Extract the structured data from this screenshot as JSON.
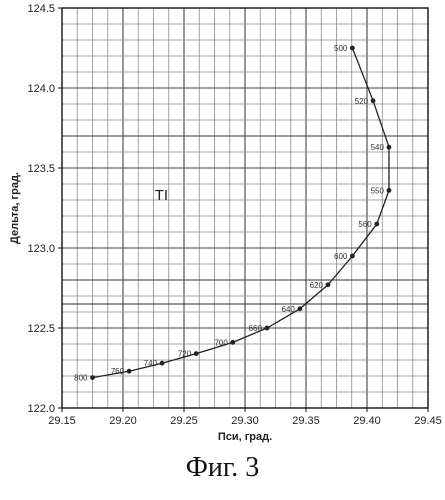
{
  "caption": "Фиг. 3",
  "chart_data": {
    "type": "line",
    "title": "",
    "xlabel": "Пси, град.",
    "ylabel": "Дельта, град.",
    "xlim": [
      29.15,
      29.45
    ],
    "ylim": [
      122.0,
      124.5
    ],
    "x_ticks": [
      "29.15",
      "29.20",
      "29.25",
      "29.30",
      "29.35",
      "29.40",
      "29.45"
    ],
    "y_ticks": [
      "122.0",
      "122.5",
      "123.0",
      "123.5",
      "124.0",
      "124.5"
    ],
    "grid": true,
    "annotation": "TI",
    "series": [
      {
        "points": [
          {
            "x": 29.388,
            "y": 124.25,
            "label": "500"
          },
          {
            "x": 29.405,
            "y": 123.92,
            "label": "520"
          },
          {
            "x": 29.418,
            "y": 123.63,
            "label": "540"
          },
          {
            "x": 29.418,
            "y": 123.36,
            "label": "550"
          },
          {
            "x": 29.408,
            "y": 123.15,
            "label": "560"
          },
          {
            "x": 29.388,
            "y": 122.95,
            "label": "600"
          },
          {
            "x": 29.368,
            "y": 122.77,
            "label": "620"
          },
          {
            "x": 29.345,
            "y": 122.62,
            "label": "640"
          },
          {
            "x": 29.318,
            "y": 122.5,
            "label": "660"
          },
          {
            "x": 29.29,
            "y": 122.41,
            "label": "700"
          },
          {
            "x": 29.26,
            "y": 122.34,
            "label": "720"
          },
          {
            "x": 29.232,
            "y": 122.28,
            "label": "740"
          },
          {
            "x": 29.205,
            "y": 122.23,
            "label": "760"
          },
          {
            "x": 29.175,
            "y": 122.19,
            "label": "800"
          }
        ]
      }
    ]
  }
}
